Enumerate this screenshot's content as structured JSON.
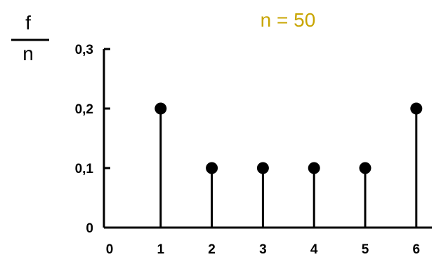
{
  "chart_data": {
    "type": "stem",
    "title": "n = 50",
    "ylabel_numerator": "f",
    "ylabel_denominator": "n",
    "title_color": "#c8a500",
    "x_ticks": [
      "0",
      "1",
      "2",
      "3",
      "4",
      "5",
      "6"
    ],
    "y_ticks": [
      "0",
      "0,1",
      "0,2",
      "0,3"
    ],
    "ylim": [
      0,
      0.3
    ],
    "xlim": [
      0,
      6
    ],
    "points": [
      {
        "x": 1,
        "y": 0.2
      },
      {
        "x": 2,
        "y": 0.1
      },
      {
        "x": 3,
        "y": 0.1
      },
      {
        "x": 4,
        "y": 0.1
      },
      {
        "x": 5,
        "y": 0.1
      },
      {
        "x": 6,
        "y": 0.2
      }
    ],
    "grid": false
  }
}
